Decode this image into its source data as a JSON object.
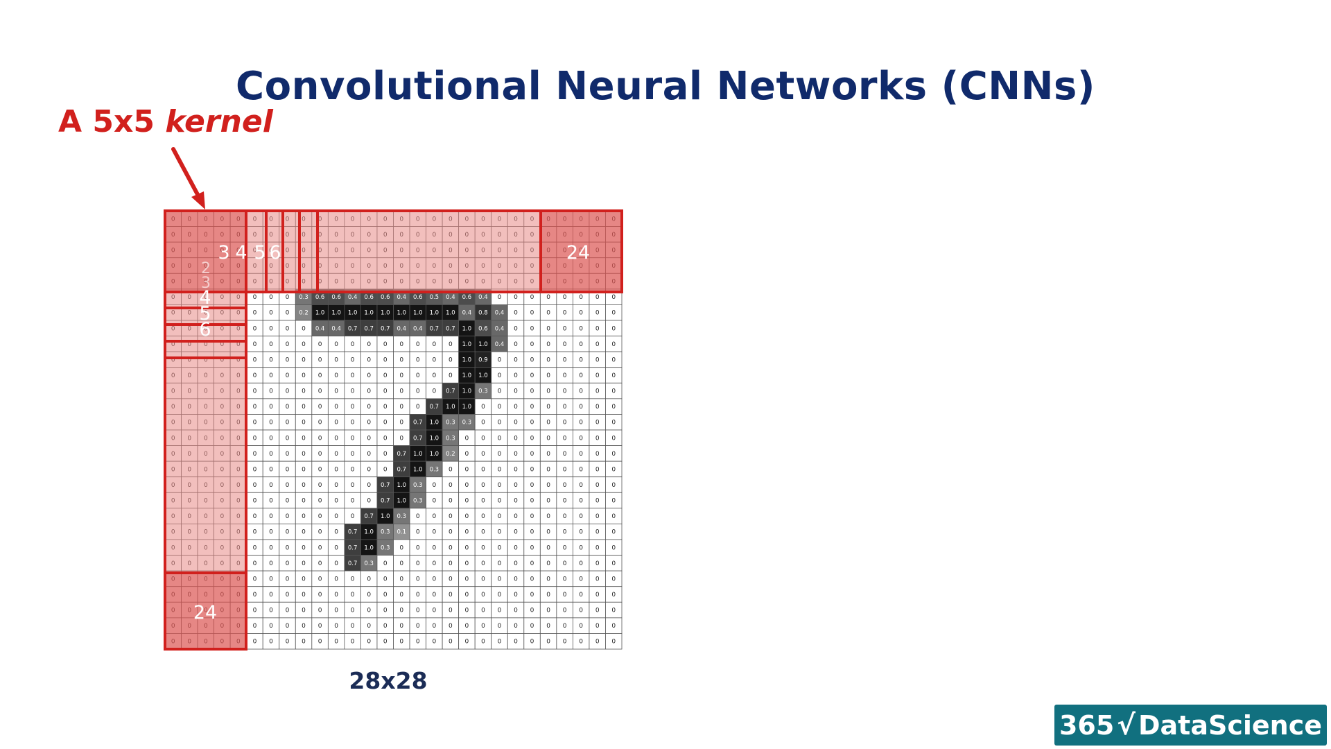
{
  "title": "Convolutional Neural Networks (CNNs)",
  "kernel_label": {
    "prefix": "A 5x5 ",
    "emphasis": "kernel"
  },
  "grid_caption": "28x28",
  "logo": {
    "number": "365",
    "name": "DataScience"
  },
  "kernel_position_labels": {
    "row": [
      "3",
      "4",
      "5",
      "6",
      "24"
    ],
    "column": [
      "2",
      "3",
      "4",
      "5",
      "6",
      "24"
    ]
  },
  "colors": {
    "title": "#102a6b",
    "accent_red": "#d1201d",
    "highlight_fill": "#e88a87",
    "logo_bg": "#11707f"
  },
  "grid": {
    "size": 28,
    "default_value": "0",
    "nonzero": [
      [
        5,
        8,
        "0.3"
      ],
      [
        5,
        9,
        "0.6"
      ],
      [
        5,
        10,
        "0.6"
      ],
      [
        5,
        11,
        "0.4"
      ],
      [
        5,
        12,
        "0.6"
      ],
      [
        5,
        13,
        "0.6"
      ],
      [
        5,
        14,
        "0.4"
      ],
      [
        5,
        15,
        "0.6"
      ],
      [
        5,
        16,
        "0.5"
      ],
      [
        5,
        17,
        "0.4"
      ],
      [
        5,
        18,
        "0.6"
      ],
      [
        5,
        19,
        "0.4"
      ],
      [
        6,
        8,
        "0.2"
      ],
      [
        6,
        9,
        "1.0"
      ],
      [
        6,
        10,
        "1.0"
      ],
      [
        6,
        11,
        "1.0"
      ],
      [
        6,
        12,
        "1.0"
      ],
      [
        6,
        13,
        "1.0"
      ],
      [
        6,
        14,
        "1.0"
      ],
      [
        6,
        15,
        "1.0"
      ],
      [
        6,
        16,
        "1.0"
      ],
      [
        6,
        17,
        "1.0"
      ],
      [
        6,
        18,
        "0.4"
      ],
      [
        6,
        19,
        "0.8"
      ],
      [
        6,
        20,
        "0.4"
      ],
      [
        7,
        9,
        "0.4"
      ],
      [
        7,
        10,
        "0.4"
      ],
      [
        7,
        11,
        "0.7"
      ],
      [
        7,
        12,
        "0.7"
      ],
      [
        7,
        13,
        "0.7"
      ],
      [
        7,
        14,
        "0.4"
      ],
      [
        7,
        15,
        "0.4"
      ],
      [
        7,
        16,
        "0.7"
      ],
      [
        7,
        17,
        "0.7"
      ],
      [
        7,
        18,
        "1.0"
      ],
      [
        7,
        19,
        "0.6"
      ],
      [
        7,
        20,
        "0.4"
      ],
      [
        8,
        18,
        "1.0"
      ],
      [
        8,
        19,
        "1.0"
      ],
      [
        8,
        20,
        "0.4"
      ],
      [
        9,
        18,
        "1.0"
      ],
      [
        9,
        19,
        "0.9"
      ],
      [
        10,
        18,
        "1.0"
      ],
      [
        10,
        19,
        "1.0"
      ],
      [
        11,
        17,
        "0.7"
      ],
      [
        11,
        18,
        "1.0"
      ],
      [
        11,
        19,
        "0.3"
      ],
      [
        12,
        16,
        "0.7"
      ],
      [
        12,
        17,
        "1.0"
      ],
      [
        12,
        18,
        "1.0"
      ],
      [
        13,
        15,
        "0.7"
      ],
      [
        13,
        16,
        "1.0"
      ],
      [
        13,
        17,
        "0.3"
      ],
      [
        13,
        18,
        "0.3"
      ],
      [
        14,
        15,
        "0.7"
      ],
      [
        14,
        16,
        "1.0"
      ],
      [
        14,
        17,
        "0.3"
      ],
      [
        15,
        14,
        "0.7"
      ],
      [
        15,
        15,
        "1.0"
      ],
      [
        15,
        16,
        "1.0"
      ],
      [
        15,
        17,
        "0.2"
      ],
      [
        16,
        14,
        "0.7"
      ],
      [
        16,
        15,
        "1.0"
      ],
      [
        16,
        16,
        "0.3"
      ],
      [
        17,
        13,
        "0.7"
      ],
      [
        17,
        14,
        "1.0"
      ],
      [
        17,
        15,
        "0.3"
      ],
      [
        18,
        13,
        "0.7"
      ],
      [
        18,
        14,
        "1.0"
      ],
      [
        18,
        15,
        "0.3"
      ],
      [
        19,
        12,
        "0.7"
      ],
      [
        19,
        13,
        "1.0"
      ],
      [
        19,
        14,
        "0.3"
      ],
      [
        20,
        11,
        "0.7"
      ],
      [
        20,
        12,
        "1.0"
      ],
      [
        20,
        13,
        "0.3"
      ],
      [
        20,
        14,
        "0.1"
      ],
      [
        21,
        11,
        "0.7"
      ],
      [
        21,
        12,
        "1.0"
      ],
      [
        21,
        13,
        "0.3"
      ],
      [
        22,
        11,
        "0.7"
      ],
      [
        22,
        12,
        "0.3"
      ]
    ]
  }
}
